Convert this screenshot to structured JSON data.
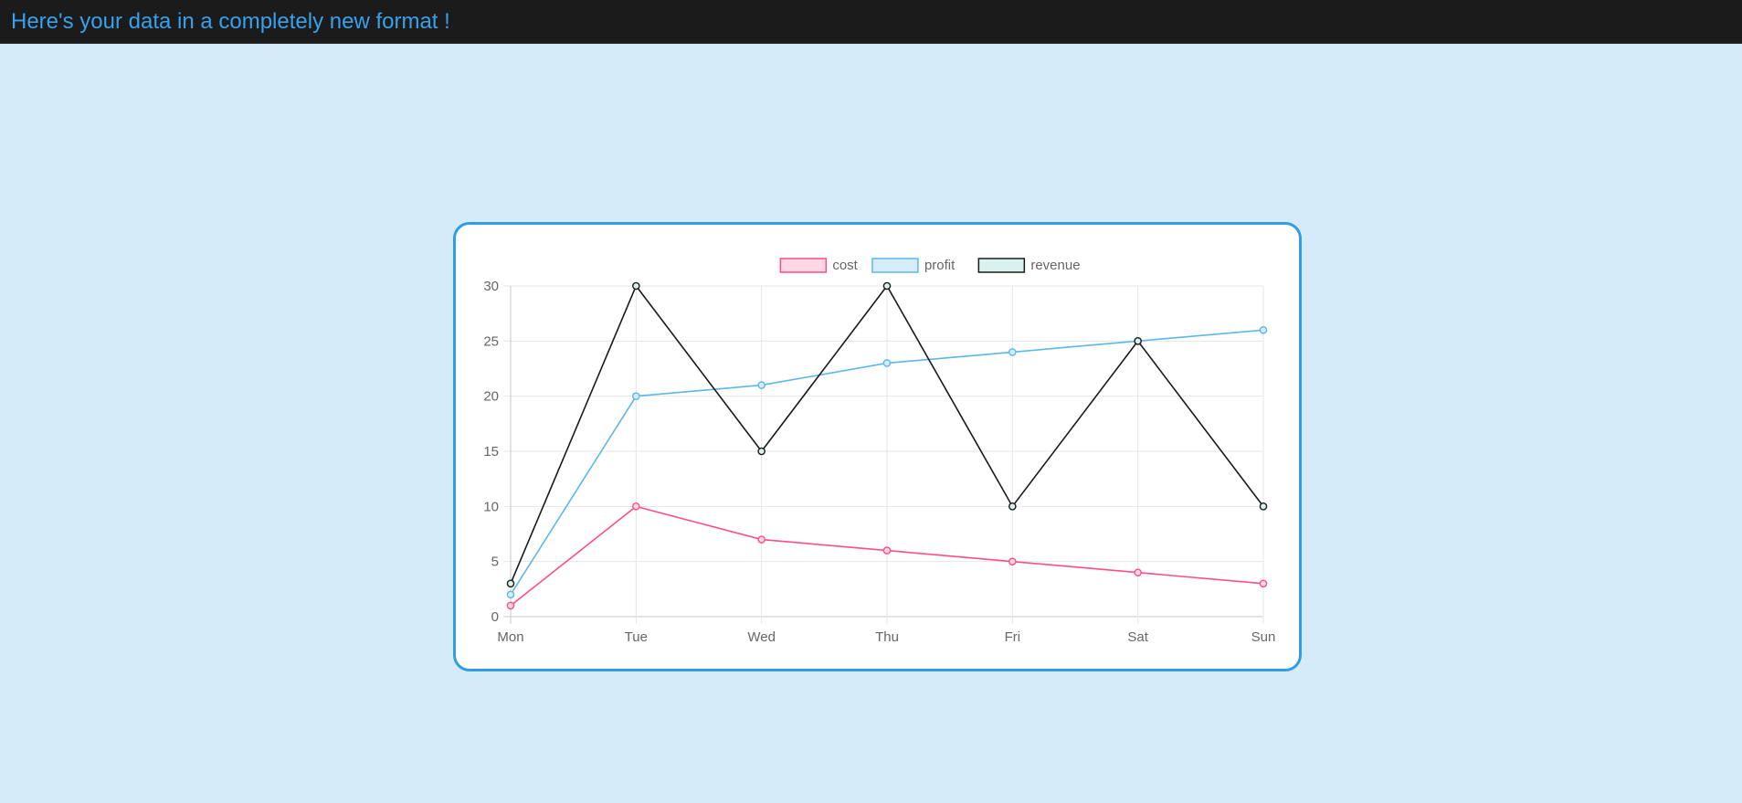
{
  "header": {
    "title": "Here's your data in a completely new format !"
  },
  "chart_data": {
    "type": "line",
    "categories": [
      "Mon",
      "Tue",
      "Wed",
      "Thu",
      "Fri",
      "Sat",
      "Sun"
    ],
    "ylim": [
      0,
      30
    ],
    "yticks": [
      0,
      5,
      10,
      15,
      20,
      25,
      30
    ],
    "grid": true,
    "legend_position": "top",
    "series": [
      {
        "name": "cost",
        "values": [
          1,
          10,
          7,
          6,
          5,
          4,
          3
        ],
        "color": "#ff4d88",
        "fill": "#ffd6e3"
      },
      {
        "name": "profit",
        "values": [
          2,
          20,
          21,
          23,
          24,
          25,
          26
        ],
        "color": "#5ab8ea",
        "fill": "#d6ecfb"
      },
      {
        "name": "revenue",
        "values": [
          3,
          30,
          15,
          30,
          10,
          25,
          10
        ],
        "color": "#1a1a1a",
        "fill": "#d9f2f0"
      }
    ]
  }
}
